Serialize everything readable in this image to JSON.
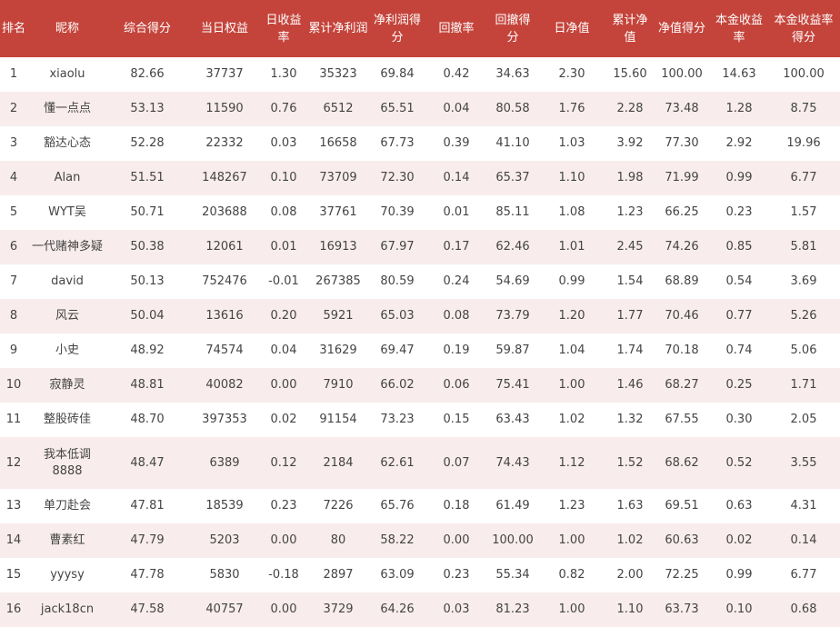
{
  "headers": [
    "排名",
    "昵称",
    "综合得分",
    "当日权益",
    "日收益率",
    "累计净利润",
    "净利润得分",
    "回撤率",
    "回撤得分",
    "日净值",
    "累计净值",
    "净值得分",
    "本金收益率",
    "本金收益率得分"
  ],
  "rows": [
    [
      "1",
      "xiaolu",
      "82.66",
      "37737",
      "1.30",
      "35323",
      "69.84",
      "0.42",
      "34.63",
      "2.30",
      "15.60",
      "100.00",
      "14.63",
      "100.00"
    ],
    [
      "2",
      "懂一点点",
      "53.13",
      "11590",
      "0.76",
      "6512",
      "65.51",
      "0.04",
      "80.58",
      "1.76",
      "2.28",
      "73.48",
      "1.28",
      "8.75"
    ],
    [
      "3",
      "豁达心态",
      "52.28",
      "22332",
      "0.03",
      "16658",
      "67.73",
      "0.39",
      "41.10",
      "1.03",
      "3.92",
      "77.30",
      "2.92",
      "19.96"
    ],
    [
      "4",
      "Alan",
      "51.51",
      "148267",
      "0.10",
      "73709",
      "72.30",
      "0.14",
      "65.37",
      "1.10",
      "1.98",
      "71.99",
      "0.99",
      "6.77"
    ],
    [
      "5",
      "WYT吴",
      "50.71",
      "203688",
      "0.08",
      "37761",
      "70.39",
      "0.01",
      "85.11",
      "1.08",
      "1.23",
      "66.25",
      "0.23",
      "1.57"
    ],
    [
      "6",
      "一代赌神多疑",
      "50.38",
      "12061",
      "0.01",
      "16913",
      "67.97",
      "0.17",
      "62.46",
      "1.01",
      "2.45",
      "74.26",
      "0.85",
      "5.81"
    ],
    [
      "7",
      "david",
      "50.13",
      "752476",
      "-0.01",
      "267385",
      "80.59",
      "0.24",
      "54.69",
      "0.99",
      "1.54",
      "68.89",
      "0.54",
      "3.69"
    ],
    [
      "8",
      "风云",
      "50.04",
      "13616",
      "0.20",
      "5921",
      "65.03",
      "0.08",
      "73.79",
      "1.20",
      "1.77",
      "70.46",
      "0.77",
      "5.26"
    ],
    [
      "9",
      "小史",
      "48.92",
      "74574",
      "0.04",
      "31629",
      "69.47",
      "0.19",
      "59.87",
      "1.04",
      "1.74",
      "70.18",
      "0.74",
      "5.06"
    ],
    [
      "10",
      "寂静灵",
      "48.81",
      "40082",
      "0.00",
      "7910",
      "66.02",
      "0.06",
      "75.41",
      "1.00",
      "1.46",
      "68.27",
      "0.25",
      "1.71"
    ],
    [
      "11",
      "整股砖佳",
      "48.70",
      "397353",
      "0.02",
      "91154",
      "73.23",
      "0.15",
      "63.43",
      "1.02",
      "1.32",
      "67.55",
      "0.30",
      "2.05"
    ],
    [
      "12",
      "我本低调8888",
      "48.47",
      "6389",
      "0.12",
      "2184",
      "62.61",
      "0.07",
      "74.43",
      "1.12",
      "1.52",
      "68.62",
      "0.52",
      "3.55"
    ],
    [
      "13",
      "单刀赴会",
      "47.81",
      "18539",
      "0.23",
      "7226",
      "65.76",
      "0.18",
      "61.49",
      "1.23",
      "1.63",
      "69.51",
      "0.63",
      "4.31"
    ],
    [
      "14",
      "曹素红",
      "47.79",
      "5203",
      "0.00",
      "80",
      "58.22",
      "0.00",
      "100.00",
      "1.00",
      "1.02",
      "60.63",
      "0.02",
      "0.14"
    ],
    [
      "15",
      "yyysy",
      "47.78",
      "5830",
      "-0.18",
      "2897",
      "63.09",
      "0.23",
      "55.34",
      "0.82",
      "2.00",
      "72.25",
      "0.99",
      "6.77"
    ],
    [
      "16",
      "jack18cn",
      "47.58",
      "40757",
      "0.00",
      "3729",
      "64.26",
      "0.03",
      "81.23",
      "1.00",
      "1.10",
      "63.73",
      "0.10",
      "0.68"
    ]
  ],
  "colors": {
    "header_bg": "#c4443b",
    "stripe": "#f8ecec",
    "text": "#444444"
  }
}
